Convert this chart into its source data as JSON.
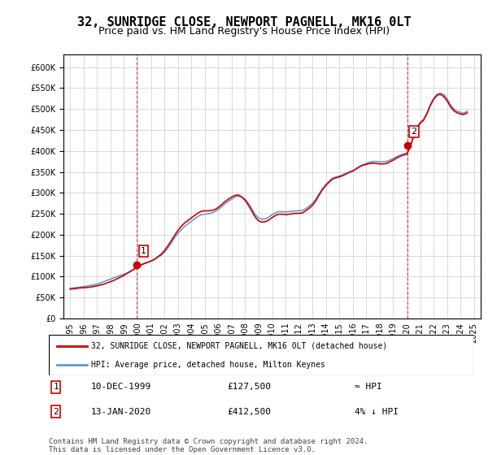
{
  "title": "32, SUNRIDGE CLOSE, NEWPORT PAGNELL, MK16 0LT",
  "subtitle": "Price paid vs. HM Land Registry's House Price Index (HPI)",
  "legend_label1": "32, SUNRIDGE CLOSE, NEWPORT PAGNELL, MK16 0LT (detached house)",
  "legend_label2": "HPI: Average price, detached house, Milton Keynes",
  "footer": "Contains HM Land Registry data © Crown copyright and database right 2024.\nThis data is licensed under the Open Government Licence v3.0.",
  "annotation1_label": "1",
  "annotation1_date": "10-DEC-1999",
  "annotation1_price": "£127,500",
  "annotation1_hpi": "≈ HPI",
  "annotation2_label": "2",
  "annotation2_date": "13-JAN-2020",
  "annotation2_price": "£412,500",
  "annotation2_hpi": "4% ↓ HPI",
  "sale1_x": 1999.94,
  "sale1_y": 127500,
  "sale2_x": 2020.04,
  "sale2_y": 412500,
  "ylim_min": 0,
  "ylim_max": 630000,
  "xlim_min": 1994.5,
  "xlim_max": 2025.5,
  "hpi_color": "#6699cc",
  "price_color": "#cc0000",
  "background_color": "#ffffff",
  "grid_color": "#cccccc",
  "hpi_data_x": [
    1995,
    1995.25,
    1995.5,
    1995.75,
    1996,
    1996.25,
    1996.5,
    1996.75,
    1997,
    1997.25,
    1997.5,
    1997.75,
    1998,
    1998.25,
    1998.5,
    1998.75,
    1999,
    1999.25,
    1999.5,
    1999.75,
    2000,
    2000.25,
    2000.5,
    2000.75,
    2001,
    2001.25,
    2001.5,
    2001.75,
    2002,
    2002.25,
    2002.5,
    2002.75,
    2003,
    2003.25,
    2003.5,
    2003.75,
    2004,
    2004.25,
    2004.5,
    2004.75,
    2005,
    2005.25,
    2005.5,
    2005.75,
    2006,
    2006.25,
    2006.5,
    2006.75,
    2007,
    2007.25,
    2007.5,
    2007.75,
    2008,
    2008.25,
    2008.5,
    2008.75,
    2009,
    2009.25,
    2009.5,
    2009.75,
    2010,
    2010.25,
    2010.5,
    2010.75,
    2011,
    2011.25,
    2011.5,
    2011.75,
    2012,
    2012.25,
    2012.5,
    2012.75,
    2013,
    2013.25,
    2013.5,
    2013.75,
    2014,
    2014.25,
    2014.5,
    2014.75,
    2015,
    2015.25,
    2015.5,
    2015.75,
    2016,
    2016.25,
    2016.5,
    2016.75,
    2017,
    2017.25,
    2017.5,
    2017.75,
    2018,
    2018.25,
    2018.5,
    2018.75,
    2019,
    2019.25,
    2019.5,
    2019.75,
    2020,
    2020.25,
    2020.5,
    2020.75,
    2021,
    2021.25,
    2021.5,
    2021.75,
    2022,
    2022.25,
    2022.5,
    2022.75,
    2023,
    2023.25,
    2023.5,
    2023.75,
    2024,
    2024.25,
    2024.5
  ],
  "hpi_data_y": [
    72000,
    73000,
    74000,
    75000,
    76000,
    77500,
    79000,
    80000,
    82000,
    85000,
    88000,
    91000,
    94000,
    97000,
    100000,
    103000,
    106000,
    109000,
    113000,
    117000,
    122000,
    127000,
    131000,
    134000,
    137000,
    141000,
    146000,
    151000,
    158000,
    168000,
    180000,
    192000,
    203000,
    212000,
    220000,
    226000,
    232000,
    238000,
    244000,
    248000,
    249000,
    250000,
    252000,
    255000,
    260000,
    267000,
    274000,
    280000,
    285000,
    290000,
    292000,
    290000,
    285000,
    275000,
    262000,
    248000,
    240000,
    237000,
    238000,
    242000,
    248000,
    252000,
    255000,
    255000,
    254000,
    255000,
    256000,
    257000,
    257000,
    258000,
    262000,
    268000,
    275000,
    285000,
    298000,
    310000,
    320000,
    328000,
    335000,
    338000,
    340000,
    343000,
    347000,
    350000,
    353000,
    358000,
    363000,
    367000,
    370000,
    373000,
    375000,
    375000,
    374000,
    374000,
    375000,
    378000,
    382000,
    386000,
    390000,
    393000,
    395000,
    410000,
    435000,
    455000,
    468000,
    475000,
    490000,
    510000,
    525000,
    535000,
    538000,
    535000,
    525000,
    510000,
    500000,
    495000,
    492000,
    490000,
    495000
  ],
  "price_data_x": [
    1995,
    1995.25,
    1995.5,
    1995.75,
    1996,
    1996.25,
    1996.5,
    1996.75,
    1997,
    1997.25,
    1997.5,
    1997.75,
    1998,
    1998.25,
    1998.5,
    1998.75,
    1999,
    1999.25,
    1999.5,
    1999.75,
    2000,
    2000.25,
    2000.5,
    2000.75,
    2001,
    2001.25,
    2001.5,
    2001.75,
    2002,
    2002.25,
    2002.5,
    2002.75,
    2003,
    2003.25,
    2003.5,
    2003.75,
    2004,
    2004.25,
    2004.5,
    2004.75,
    2005,
    2005.25,
    2005.5,
    2005.75,
    2006,
    2006.25,
    2006.5,
    2006.75,
    2007,
    2007.25,
    2007.5,
    2007.75,
    2008,
    2008.25,
    2008.5,
    2008.75,
    2009,
    2009.25,
    2009.5,
    2009.75,
    2010,
    2010.25,
    2010.5,
    2010.75,
    2011,
    2011.25,
    2011.5,
    2011.75,
    2012,
    2012.25,
    2012.5,
    2012.75,
    2013,
    2013.25,
    2013.5,
    2013.75,
    2014,
    2014.25,
    2014.5,
    2014.75,
    2015,
    2015.25,
    2015.5,
    2015.75,
    2016,
    2016.25,
    2016.5,
    2016.75,
    2017,
    2017.25,
    2017.5,
    2017.75,
    2018,
    2018.25,
    2018.5,
    2018.75,
    2019,
    2019.25,
    2019.5,
    2019.75,
    2020,
    2020.25,
    2020.5,
    2020.75,
    2021,
    2021.25,
    2021.5,
    2021.75,
    2022,
    2022.25,
    2022.5,
    2022.75,
    2023,
    2023.25,
    2023.5,
    2023.75,
    2024,
    2024.25,
    2024.5
  ],
  "price_data_y": [
    70000,
    71000,
    72000,
    73000,
    73500,
    74000,
    75000,
    76500,
    78000,
    80000,
    82000,
    85000,
    88000,
    91000,
    95000,
    99000,
    103000,
    108000,
    113000,
    118000,
    124000,
    128000,
    131000,
    134000,
    137000,
    141000,
    147000,
    153000,
    162000,
    173000,
    185000,
    198000,
    210000,
    220000,
    228000,
    234000,
    240000,
    246000,
    252000,
    256000,
    257000,
    257000,
    258000,
    260000,
    265000,
    272000,
    279000,
    285000,
    290000,
    294000,
    295000,
    290000,
    282000,
    270000,
    256000,
    242000,
    233000,
    230000,
    231000,
    235000,
    241000,
    246000,
    249000,
    249000,
    248000,
    249000,
    250000,
    251000,
    251000,
    252000,
    257000,
    263000,
    270000,
    281000,
    295000,
    308000,
    318000,
    326000,
    333000,
    336000,
    338000,
    341000,
    345000,
    349000,
    352000,
    357000,
    362000,
    366000,
    368000,
    370000,
    371000,
    370000,
    369000,
    369000,
    370000,
    374000,
    378000,
    383000,
    387000,
    390000,
    392000,
    408000,
    433000,
    453000,
    466000,
    473000,
    488000,
    508000,
    523000,
    533000,
    535000,
    530000,
    520000,
    506000,
    496000,
    491000,
    488000,
    487000,
    491000
  ],
  "yticks": [
    0,
    50000,
    100000,
    150000,
    200000,
    250000,
    300000,
    350000,
    400000,
    450000,
    500000,
    550000,
    600000
  ],
  "xticks": [
    1995,
    1996,
    1997,
    1998,
    1999,
    2000,
    2001,
    2002,
    2003,
    2004,
    2005,
    2006,
    2007,
    2008,
    2009,
    2010,
    2011,
    2012,
    2013,
    2014,
    2015,
    2016,
    2017,
    2018,
    2019,
    2020,
    2021,
    2022,
    2023,
    2024,
    2025
  ]
}
